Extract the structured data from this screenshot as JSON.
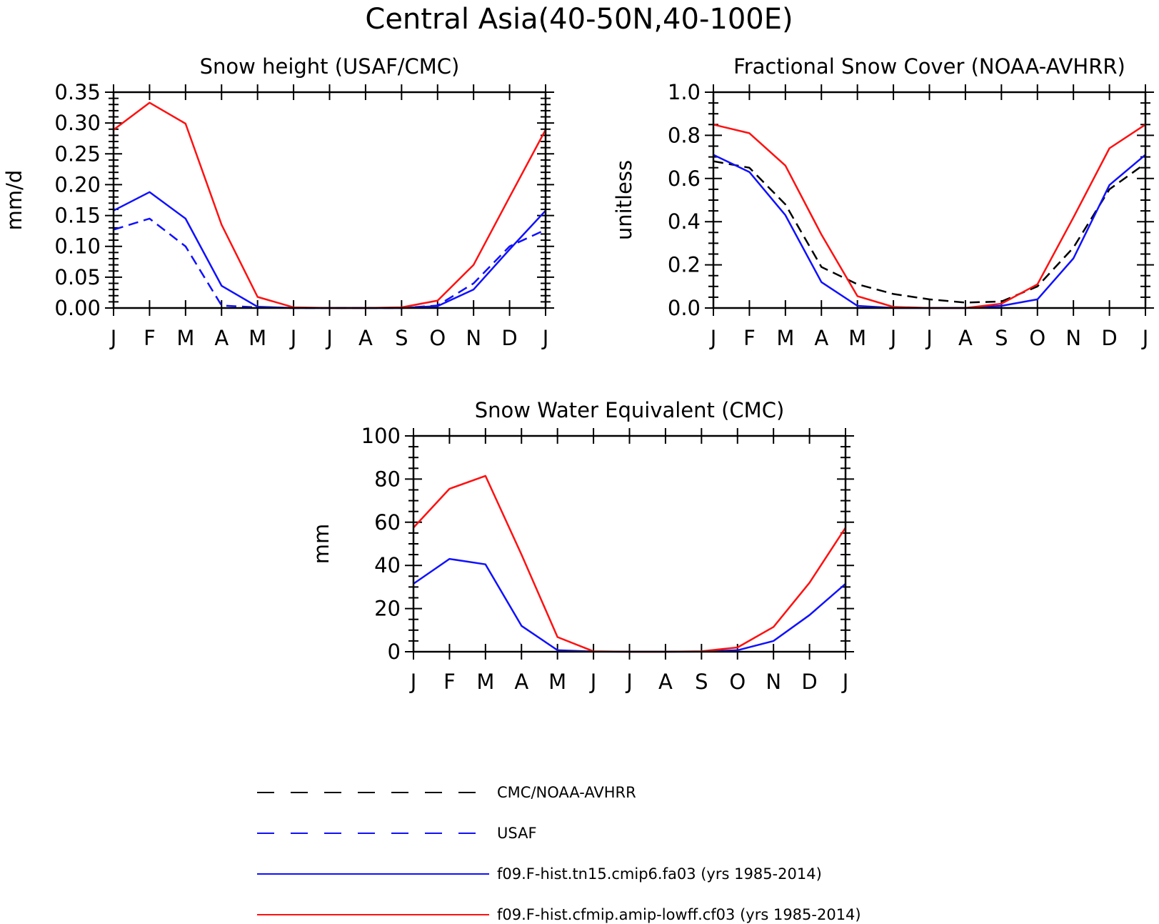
{
  "title": "Central Asia(40-50N,40-100E)",
  "months": [
    "J",
    "F",
    "M",
    "A",
    "M",
    "J",
    "J",
    "A",
    "S",
    "O",
    "N",
    "D",
    "J"
  ],
  "colors": {
    "model_blue": "#1010ff",
    "model_red": "#ff1010",
    "obs_black": "#000000",
    "obs_blue": "#1010ff"
  },
  "chart_data": [
    {
      "type": "line",
      "title": "Snow height (USAF/CMC)",
      "ylabel": "mm/d",
      "xlabel": "",
      "ylim": [
        0,
        0.35
      ],
      "yticks": [
        "0.00",
        "0.05",
        "0.10",
        "0.15",
        "0.20",
        "0.25",
        "0.30",
        "0.35"
      ],
      "categories": [
        "J",
        "F",
        "M",
        "A",
        "M",
        "J",
        "J",
        "A",
        "S",
        "O",
        "N",
        "D",
        "J"
      ],
      "series": [
        {
          "name": "USAF",
          "style": "dashed",
          "color": "#1010ff",
          "values": [
            0.127,
            0.145,
            0.1,
            0.004,
            0.001,
            0.0,
            0.0,
            0.0,
            0.0,
            0.004,
            0.04,
            0.1,
            0.127
          ]
        },
        {
          "name": "f09.F-hist.tn15.cmip6.fa03 (yrs 1985-2014)",
          "style": "solid",
          "color": "#1010ff",
          "values": [
            0.158,
            0.188,
            0.145,
            0.036,
            0.002,
            0.0,
            0.0,
            0.0,
            0.0,
            0.003,
            0.03,
            0.095,
            0.158
          ]
        },
        {
          "name": "f09.F-hist.cfmip.amip-lowff.cf03 (yrs 1985-2014)",
          "style": "solid",
          "color": "#ff1010",
          "values": [
            0.289,
            0.333,
            0.299,
            0.135,
            0.018,
            0.001,
            0.0,
            0.0,
            0.001,
            0.012,
            0.07,
            0.18,
            0.289
          ]
        }
      ]
    },
    {
      "type": "line",
      "title": "Fractional Snow Cover (NOAA-AVHRR)",
      "ylabel": "unitless",
      "xlabel": "",
      "ylim": [
        0,
        1.0
      ],
      "yticks": [
        "0.0",
        "0.2",
        "0.4",
        "0.6",
        "0.8",
        "1.0"
      ],
      "categories": [
        "J",
        "F",
        "M",
        "A",
        "M",
        "J",
        "J",
        "A",
        "S",
        "O",
        "N",
        "D",
        "J"
      ],
      "series": [
        {
          "name": "CMC/NOAA-AVHRR",
          "style": "dashed",
          "color": "#000000",
          "values": [
            0.68,
            0.65,
            0.48,
            0.19,
            0.11,
            0.065,
            0.04,
            0.025,
            0.03,
            0.1,
            0.28,
            0.55,
            0.67
          ]
        },
        {
          "name": "f09.F-hist.tn15.cmip6.fa03 (yrs 1985-2014)",
          "style": "solid",
          "color": "#1010ff",
          "values": [
            0.71,
            0.63,
            0.43,
            0.12,
            0.01,
            0.0,
            0.0,
            0.0,
            0.01,
            0.04,
            0.23,
            0.57,
            0.71
          ]
        },
        {
          "name": "f09.F-hist.cfmip.amip-lowff.cf03 (yrs 1985-2014)",
          "style": "solid",
          "color": "#ff1010",
          "values": [
            0.85,
            0.81,
            0.66,
            0.34,
            0.055,
            0.005,
            0.0,
            0.0,
            0.02,
            0.11,
            0.42,
            0.74,
            0.85
          ]
        }
      ]
    },
    {
      "type": "line",
      "title": "Snow Water Equivalent (CMC)",
      "ylabel": "mm",
      "xlabel": "",
      "ylim": [
        0,
        100
      ],
      "yticks": [
        "0",
        "20",
        "40",
        "60",
        "80",
        "100"
      ],
      "categories": [
        "J",
        "F",
        "M",
        "A",
        "M",
        "J",
        "J",
        "A",
        "S",
        "O",
        "N",
        "D",
        "J"
      ],
      "series": [
        {
          "name": "f09.F-hist.tn15.cmip6.fa03 (yrs 1985-2014)",
          "style": "solid",
          "color": "#1010ff",
          "values": [
            31.5,
            43.0,
            40.5,
            12.0,
            0.7,
            0.1,
            0.0,
            0.0,
            0.1,
            0.7,
            5.0,
            17.0,
            31.5
          ]
        },
        {
          "name": "f09.F-hist.cfmip.amip-lowff.cf03 (yrs 1985-2014)",
          "style": "solid",
          "color": "#ff1010",
          "values": [
            57.5,
            75.5,
            81.5,
            45.0,
            6.8,
            0.2,
            0.0,
            0.0,
            0.2,
            2.0,
            11.5,
            32.0,
            57.5
          ]
        }
      ]
    }
  ],
  "legend": [
    {
      "label": "CMC/NOAA-AVHRR",
      "color": "#000000",
      "style": "dashed"
    },
    {
      "label": "USAF",
      "color": "#1010ff",
      "style": "dashed"
    },
    {
      "label": "f09.F-hist.tn15.cmip6.fa03 (yrs 1985-2014)",
      "color": "#1010ff",
      "style": "solid"
    },
    {
      "label": "f09.F-hist.cfmip.amip-lowff.cf03 (yrs 1985-2014)",
      "color": "#ff1010",
      "style": "solid"
    }
  ]
}
